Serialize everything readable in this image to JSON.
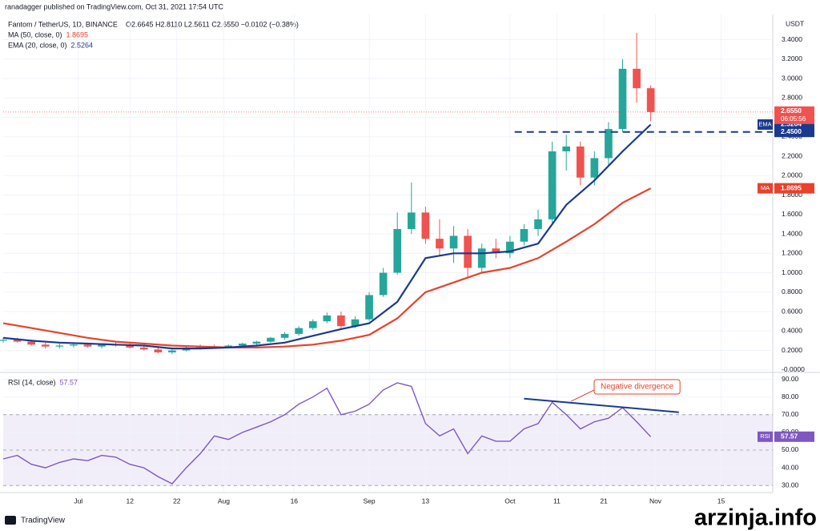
{
  "header": {
    "publisher": "ranadagger published on TradingView.com, Oct 31, 2021 17:54 UTC",
    "symbol": "Fantom / TetherUS, 1D, BINANCE",
    "ohlc": "O2.6645 H2.8110 L2.5611 C2.6550 −0.0102 (−0.38%)",
    "currency": "USDT"
  },
  "footer": {
    "brand": "TradingView",
    "watermark": "arzinja.info"
  },
  "chart_data": [
    {
      "type": "candlestick",
      "x": [
        -16,
        -13,
        -10,
        -7,
        -4,
        -1,
        2,
        5,
        8,
        11,
        14,
        17,
        20,
        23,
        26,
        29,
        32,
        35,
        38,
        41,
        44,
        47,
        50,
        53,
        56,
        59,
        62,
        65,
        68,
        71,
        74,
        77,
        80,
        83,
        86,
        89,
        92,
        95,
        98,
        101,
        104,
        107,
        110,
        113,
        116,
        119,
        122
      ],
      "open": [
        0.3,
        0.31,
        0.29,
        0.26,
        0.24,
        0.25,
        0.26,
        0.24,
        0.26,
        0.25,
        0.23,
        0.21,
        0.18,
        0.2,
        0.23,
        0.24,
        0.23,
        0.25,
        0.27,
        0.29,
        0.33,
        0.37,
        0.43,
        0.5,
        0.56,
        0.45,
        0.52,
        0.77,
        1.0,
        1.45,
        1.62,
        1.35,
        1.25,
        1.38,
        1.05,
        1.25,
        1.2,
        1.32,
        1.45,
        1.55,
        2.25,
        2.3,
        1.98,
        2.18,
        2.48,
        3.1,
        2.9
      ],
      "high": [
        0.33,
        0.33,
        0.31,
        0.28,
        0.27,
        0.28,
        0.28,
        0.27,
        0.29,
        0.27,
        0.25,
        0.23,
        0.21,
        0.24,
        0.26,
        0.26,
        0.26,
        0.28,
        0.3,
        0.34,
        0.39,
        0.45,
        0.52,
        0.59,
        0.6,
        0.55,
        0.8,
        1.05,
        1.62,
        1.93,
        1.68,
        1.55,
        1.48,
        1.45,
        1.3,
        1.35,
        1.38,
        1.5,
        1.65,
        2.35,
        2.42,
        2.35,
        2.25,
        2.55,
        3.2,
        3.47,
        2.93
      ],
      "low": [
        0.28,
        0.28,
        0.25,
        0.22,
        0.22,
        0.23,
        0.23,
        0.22,
        0.24,
        0.22,
        0.2,
        0.17,
        0.16,
        0.19,
        0.21,
        0.22,
        0.22,
        0.24,
        0.25,
        0.28,
        0.31,
        0.35,
        0.41,
        0.48,
        0.42,
        0.43,
        0.5,
        0.75,
        0.98,
        1.4,
        1.3,
        1.18,
        1.1,
        0.95,
        1.0,
        1.15,
        1.15,
        1.28,
        1.38,
        1.5,
        2.05,
        1.9,
        1.9,
        2.1,
        2.45,
        2.75,
        2.56
      ],
      "close": [
        0.31,
        0.29,
        0.26,
        0.24,
        0.25,
        0.26,
        0.24,
        0.26,
        0.25,
        0.23,
        0.21,
        0.18,
        0.2,
        0.23,
        0.24,
        0.23,
        0.25,
        0.27,
        0.29,
        0.33,
        0.37,
        0.43,
        0.5,
        0.56,
        0.45,
        0.52,
        0.77,
        1.0,
        1.45,
        1.62,
        1.35,
        1.25,
        1.38,
        1.05,
        1.25,
        1.2,
        1.32,
        1.45,
        1.55,
        2.25,
        2.3,
        1.98,
        2.18,
        2.48,
        3.1,
        2.9,
        2.655
      ],
      "color_up": "#26a69a",
      "color_down": "#ef5350",
      "series": [
        {
          "name": "MA (50, close, 0)",
          "short": "MA",
          "color": "#e8412c",
          "x": [
            -16,
            -10,
            -4,
            2,
            8,
            14,
            20,
            26,
            32,
            38,
            44,
            50,
            56,
            62,
            68,
            74,
            80,
            86,
            92,
            98,
            104,
            110,
            116,
            122
          ],
          "values": [
            0.48,
            0.43,
            0.38,
            0.33,
            0.29,
            0.27,
            0.25,
            0.24,
            0.23,
            0.23,
            0.24,
            0.26,
            0.3,
            0.36,
            0.53,
            0.8,
            0.9,
            1.0,
            1.05,
            1.15,
            1.32,
            1.5,
            1.72,
            1.8695
          ]
        },
        {
          "name": "EMA (20, close, 0)",
          "short": "EMA",
          "color": "#1a3a8f",
          "x": [
            -16,
            -10,
            -4,
            2,
            8,
            14,
            20,
            26,
            32,
            38,
            44,
            50,
            56,
            62,
            68,
            74,
            80,
            86,
            92,
            98,
            104,
            110,
            116,
            122
          ],
          "values": [
            0.33,
            0.3,
            0.28,
            0.27,
            0.26,
            0.25,
            0.22,
            0.22,
            0.23,
            0.25,
            0.28,
            0.35,
            0.42,
            0.48,
            0.7,
            1.15,
            1.2,
            1.2,
            1.22,
            1.3,
            1.7,
            1.95,
            2.25,
            2.5264
          ]
        }
      ],
      "price_tag": {
        "value": 2.655,
        "label": "2.6550",
        "countdown": "06:05:56",
        "color": "#ef5350"
      },
      "level": {
        "value": 2.45,
        "label": "2.4500",
        "from_x": 93,
        "color": "#1a3a8f"
      },
      "xlim": [
        -16,
        148
      ],
      "ylim": [
        -0.01,
        3.66
      ],
      "xticks": [
        {
          "value": 0,
          "label": "Jul"
        },
        {
          "value": 11,
          "label": "12"
        },
        {
          "value": 21,
          "label": "22"
        },
        {
          "value": 31,
          "label": "Aug"
        },
        {
          "value": 46,
          "label": "16"
        },
        {
          "value": 62,
          "label": "Sep"
        },
        {
          "value": 74,
          "label": "13"
        },
        {
          "value": 92,
          "label": "Oct"
        },
        {
          "value": 102,
          "label": "11"
        },
        {
          "value": 112,
          "label": "21"
        },
        {
          "value": 123,
          "label": "Nov"
        },
        {
          "value": 137,
          "label": "15"
        }
      ],
      "yticks": [
        {
          "value": 0,
          "label": "-0.0000"
        },
        {
          "value": 0.2,
          "label": "0.2000"
        },
        {
          "value": 0.4,
          "label": "0.4000"
        },
        {
          "value": 0.6,
          "label": "0.6000"
        },
        {
          "value": 0.8,
          "label": "0.8000"
        },
        {
          "value": 1.0,
          "label": "1.0000"
        },
        {
          "value": 1.2,
          "label": "1.2000"
        },
        {
          "value": 1.4,
          "label": "1.4000"
        },
        {
          "value": 1.6,
          "label": "1.6000"
        },
        {
          "value": 1.8,
          "label": "1.8000"
        },
        {
          "value": 2.0,
          "label": "2.0000"
        },
        {
          "value": 2.2,
          "label": "2.2000"
        },
        {
          "value": 2.4,
          "label": "2.4000"
        },
        {
          "value": 2.6,
          "label": "2.6000"
        },
        {
          "value": 2.8,
          "label": "2.8000"
        },
        {
          "value": 3.0,
          "label": "3.0000"
        },
        {
          "value": 3.2,
          "label": "3.2000"
        },
        {
          "value": 3.4,
          "label": "3.4000"
        }
      ],
      "grid": true
    },
    {
      "type": "line",
      "title": "RSI (14, close)",
      "x": [
        -16,
        -13,
        -10,
        -7,
        -4,
        -1,
        2,
        5,
        8,
        11,
        14,
        17,
        20,
        23,
        26,
        29,
        32,
        35,
        38,
        41,
        44,
        47,
        50,
        53,
        56,
        59,
        62,
        65,
        68,
        71,
        74,
        77,
        80,
        83,
        86,
        89,
        92,
        95,
        98,
        101,
        104,
        107,
        110,
        113,
        116,
        119,
        122
      ],
      "series": [
        {
          "name": "RSI",
          "color": "#7e57c2",
          "values": [
            45,
            47,
            42,
            40,
            43,
            45,
            44,
            47,
            46,
            42,
            40,
            35,
            31,
            40,
            48,
            58,
            56,
            60,
            63,
            66,
            70,
            76,
            80,
            85,
            70,
            72,
            76,
            84,
            88,
            86,
            65,
            58,
            62,
            48,
            58,
            55,
            55,
            62,
            65,
            77,
            70,
            62,
            66,
            68,
            74,
            66,
            57.57
          ]
        }
      ],
      "band": [
        30,
        70
      ],
      "midline": 50,
      "annotation": {
        "text": "Negative divergence",
        "x": [
          95,
          128
        ],
        "values": [
          79.1,
          71.4
        ],
        "color": "#1a3a8f",
        "label_color": "#e8412c"
      },
      "xlim": [
        -16,
        148
      ],
      "ylim": [
        26,
        93
      ],
      "yticks": [
        {
          "value": 30,
          "label": "30.00"
        },
        {
          "value": 40,
          "label": "40.00"
        },
        {
          "value": 50,
          "label": "50.00"
        },
        {
          "value": 60,
          "label": "60.00"
        },
        {
          "value": 70,
          "label": "70.00"
        },
        {
          "value": 80,
          "label": "80.00"
        },
        {
          "value": 90,
          "label": "90.00"
        }
      ],
      "grid": true
    }
  ]
}
